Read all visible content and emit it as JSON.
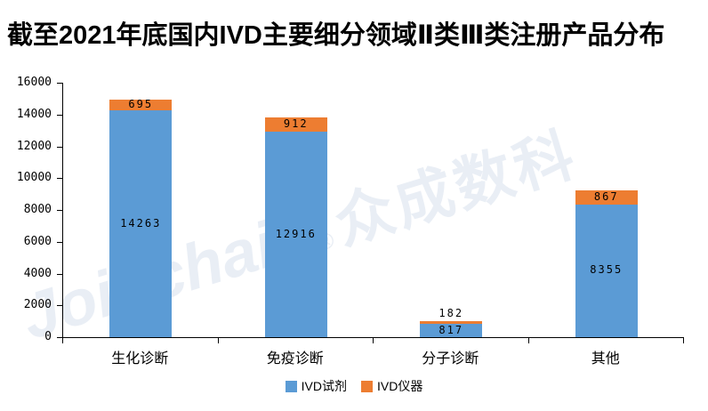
{
  "title": "截至2021年底国内IVD主要细分领域Ⅱ类Ⅲ类注册产品分布",
  "watermark": {
    "brand": "Joinchain",
    "reg": "®",
    "company": "众成数科"
  },
  "colors": {
    "reagent_blue": "#5B9BD5",
    "instrument_orange": "#ED7D31",
    "watermark": "#E9EEF5",
    "axis": "#000000",
    "background": "#FFFFFF"
  },
  "legend": {
    "items": [
      {
        "label": "IVD试剂",
        "color": "#5B9BD5"
      },
      {
        "label": "IVD仪器",
        "color": "#ED7D31"
      }
    ]
  },
  "chart_data": {
    "type": "bar",
    "stacked": true,
    "title": "截至2021年底国内IVD主要细分领域Ⅱ类Ⅲ类注册产品分布",
    "categories": [
      "生化诊断",
      "免疫诊断",
      "分子诊断",
      "其他"
    ],
    "series": [
      {
        "name": "IVD试剂",
        "color": "#5B9BD5",
        "values": [
          14263,
          12916,
          817,
          8355
        ]
      },
      {
        "name": "IVD仪器",
        "color": "#ED7D31",
        "values": [
          695,
          912,
          182,
          867
        ]
      }
    ],
    "ylim": [
      0,
      16000
    ],
    "ytick_step": 2000,
    "ytick_labels": [
      "0",
      "2000",
      "4000",
      "6000",
      "8000",
      "10000",
      "12000",
      "14000",
      "16000"
    ],
    "xlabel": "",
    "ylabel": "",
    "grid": false,
    "legend_position": "bottom",
    "data_labels": true
  }
}
